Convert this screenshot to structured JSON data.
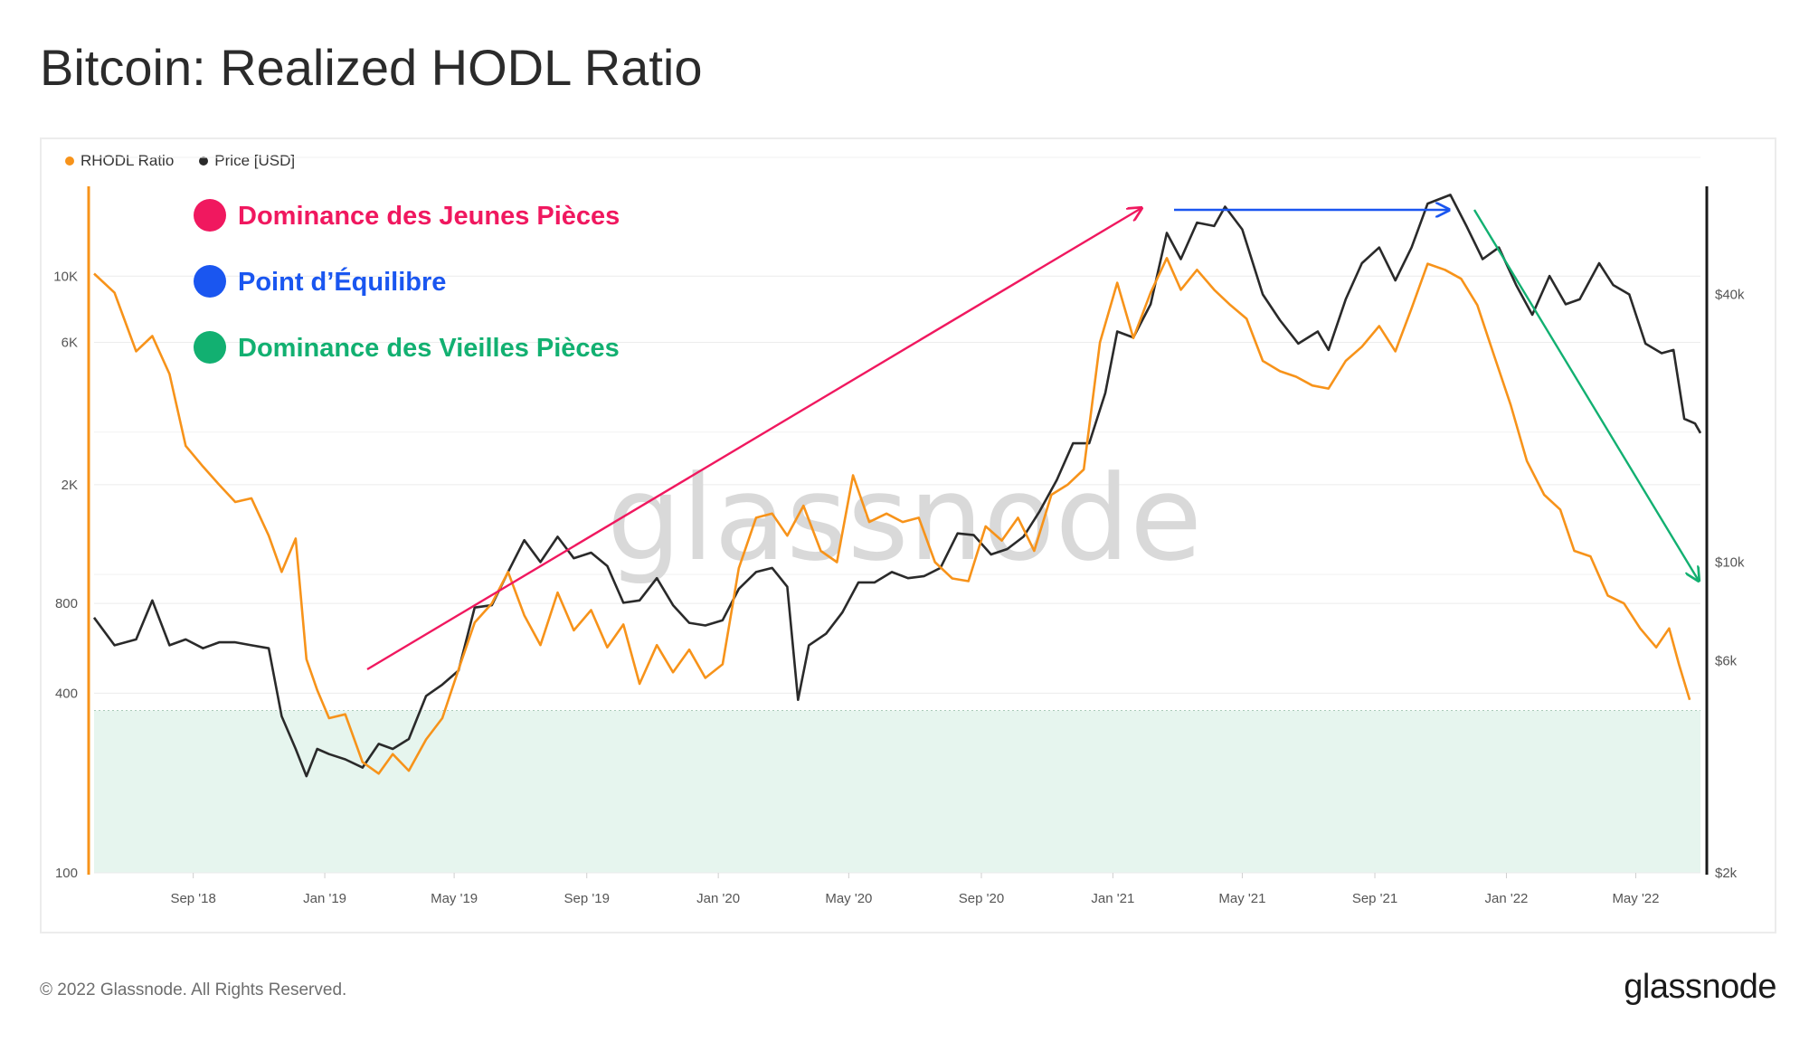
{
  "title": "Bitcoin: Realized HODL Ratio",
  "footer": {
    "copyright": "© 2022 Glassnode. All Rights Reserved.",
    "logo": "glassnode"
  },
  "watermark": "glassnode",
  "colors": {
    "rhodl": "#f7931a",
    "price": "#2a2a2a",
    "young": "#f0185f",
    "equilibrium": "#1a56f0",
    "old": "#12b071",
    "zone": "#e6f5ee"
  },
  "annotations": [
    {
      "label": "Dominance des Jeunes Pièces",
      "color": "#f0185f"
    },
    {
      "label": "Point d’Équilibre",
      "color": "#1a56f0"
    },
    {
      "label": "Dominance des Vieilles Pièces",
      "color": "#12b071"
    }
  ],
  "chart_data": {
    "type": "line",
    "legend": {
      "position": "top-left",
      "entries": [
        "RHODL Ratio",
        "Price [USD]"
      ]
    },
    "x_ticks": [
      "Sep '18",
      "Jan '19",
      "May '19",
      "Sep '19",
      "Jan '20",
      "May '20",
      "Sep '20",
      "Jan '21",
      "May '21",
      "Sep '21",
      "Jan '22",
      "May '22"
    ],
    "x_tick_dates": [
      "2018-09-01",
      "2019-01-01",
      "2019-05-01",
      "2019-09-01",
      "2020-01-01",
      "2020-05-01",
      "2020-09-01",
      "2021-01-01",
      "2021-05-01",
      "2021-09-01",
      "2022-01-01",
      "2022-05-01"
    ],
    "x_range": [
      "2018-06-01",
      "2022-06-30"
    ],
    "y_left": {
      "label": "RHODL Ratio",
      "scale": "log",
      "range": [
        100,
        20000
      ],
      "ticks": [
        100,
        400,
        800,
        2000,
        6000,
        10000
      ],
      "tick_labels": [
        "100",
        "400",
        "800",
        "2K",
        "6K",
        "10K"
      ]
    },
    "y_right": {
      "label": "Price [USD]",
      "scale": "log",
      "range": [
        2000,
        70000
      ],
      "ticks": [
        2000,
        6000,
        10000,
        40000
      ],
      "tick_labels": [
        "$2k",
        "$6k",
        "$10k",
        "$40k"
      ]
    },
    "shaded_zone": {
      "series": "RHODL Ratio",
      "from": 100,
      "to": 350
    },
    "series": [
      {
        "name": "RHODL Ratio",
        "axis": "left",
        "points": [
          [
            "2018-06-01",
            10200
          ],
          [
            "2018-06-20",
            8800
          ],
          [
            "2018-07-10",
            5600
          ],
          [
            "2018-07-25",
            6300
          ],
          [
            "2018-08-10",
            4700
          ],
          [
            "2018-08-25",
            2700
          ],
          [
            "2018-09-10",
            2300
          ],
          [
            "2018-09-25",
            2000
          ],
          [
            "2018-10-10",
            1750
          ],
          [
            "2018-10-25",
            1800
          ],
          [
            "2018-11-10",
            1350
          ],
          [
            "2018-11-22",
            1020
          ],
          [
            "2018-12-05",
            1320
          ],
          [
            "2018-12-15",
            520
          ],
          [
            "2018-12-25",
            410
          ],
          [
            "2019-01-05",
            330
          ],
          [
            "2019-01-20",
            340
          ],
          [
            "2019-02-05",
            235
          ],
          [
            "2019-02-20",
            215
          ],
          [
            "2019-03-05",
            250
          ],
          [
            "2019-03-20",
            220
          ],
          [
            "2019-04-05",
            280
          ],
          [
            "2019-04-20",
            330
          ],
          [
            "2019-05-05",
            480
          ],
          [
            "2019-05-20",
            690
          ],
          [
            "2019-06-05",
            800
          ],
          [
            "2019-06-20",
            1020
          ],
          [
            "2019-07-05",
            730
          ],
          [
            "2019-07-20",
            580
          ],
          [
            "2019-08-05",
            870
          ],
          [
            "2019-08-20",
            650
          ],
          [
            "2019-09-05",
            760
          ],
          [
            "2019-09-20",
            570
          ],
          [
            "2019-10-05",
            680
          ],
          [
            "2019-10-20",
            430
          ],
          [
            "2019-11-05",
            580
          ],
          [
            "2019-11-20",
            470
          ],
          [
            "2019-12-05",
            560
          ],
          [
            "2019-12-20",
            450
          ],
          [
            "2020-01-05",
            500
          ],
          [
            "2020-01-20",
            1050
          ],
          [
            "2020-02-05",
            1550
          ],
          [
            "2020-02-20",
            1600
          ],
          [
            "2020-03-05",
            1350
          ],
          [
            "2020-03-20",
            1700
          ],
          [
            "2020-04-05",
            1200
          ],
          [
            "2020-04-20",
            1100
          ],
          [
            "2020-05-05",
            2150
          ],
          [
            "2020-05-20",
            1500
          ],
          [
            "2020-06-05",
            1600
          ],
          [
            "2020-06-20",
            1500
          ],
          [
            "2020-07-05",
            1550
          ],
          [
            "2020-07-20",
            1100
          ],
          [
            "2020-08-05",
            970
          ],
          [
            "2020-08-20",
            950
          ],
          [
            "2020-09-05",
            1450
          ],
          [
            "2020-09-20",
            1300
          ],
          [
            "2020-10-05",
            1550
          ],
          [
            "2020-10-20",
            1200
          ],
          [
            "2020-11-05",
            1850
          ],
          [
            "2020-11-20",
            2000
          ],
          [
            "2020-12-05",
            2250
          ],
          [
            "2020-12-20",
            6000
          ],
          [
            "2021-01-05",
            9500
          ],
          [
            "2021-01-20",
            6200
          ],
          [
            "2021-02-05",
            8800
          ],
          [
            "2021-02-20",
            11500
          ],
          [
            "2021-03-05",
            9000
          ],
          [
            "2021-03-20",
            10500
          ],
          [
            "2021-04-05",
            9000
          ],
          [
            "2021-04-20",
            8000
          ],
          [
            "2021-05-05",
            7200
          ],
          [
            "2021-05-20",
            5200
          ],
          [
            "2021-06-05",
            4800
          ],
          [
            "2021-06-20",
            4600
          ],
          [
            "2021-07-05",
            4300
          ],
          [
            "2021-07-20",
            4200
          ],
          [
            "2021-08-05",
            5200
          ],
          [
            "2021-08-20",
            5800
          ],
          [
            "2021-09-05",
            6800
          ],
          [
            "2021-09-20",
            5600
          ],
          [
            "2021-10-05",
            7800
          ],
          [
            "2021-10-20",
            11000
          ],
          [
            "2021-11-05",
            10500
          ],
          [
            "2021-11-20",
            9800
          ],
          [
            "2021-12-05",
            8000
          ],
          [
            "2021-12-20",
            5500
          ],
          [
            "2022-01-05",
            3700
          ],
          [
            "2022-01-20",
            2400
          ],
          [
            "2022-02-05",
            1850
          ],
          [
            "2022-02-20",
            1650
          ],
          [
            "2022-03-05",
            1200
          ],
          [
            "2022-03-20",
            1150
          ],
          [
            "2022-04-05",
            850
          ],
          [
            "2022-04-20",
            800
          ],
          [
            "2022-05-05",
            660
          ],
          [
            "2022-05-20",
            570
          ],
          [
            "2022-06-01",
            660
          ],
          [
            "2022-06-10",
            500
          ],
          [
            "2022-06-20",
            380
          ]
        ]
      },
      {
        "name": "Price [USD]",
        "axis": "right",
        "points": [
          [
            "2018-06-01",
            7500
          ],
          [
            "2018-06-20",
            6500
          ],
          [
            "2018-07-10",
            6700
          ],
          [
            "2018-07-25",
            8200
          ],
          [
            "2018-08-10",
            6500
          ],
          [
            "2018-08-25",
            6700
          ],
          [
            "2018-09-10",
            6400
          ],
          [
            "2018-09-25",
            6600
          ],
          [
            "2018-10-10",
            6600
          ],
          [
            "2018-10-25",
            6500
          ],
          [
            "2018-11-10",
            6400
          ],
          [
            "2018-11-22",
            4500
          ],
          [
            "2018-12-05",
            3800
          ],
          [
            "2018-12-15",
            3300
          ],
          [
            "2018-12-25",
            3800
          ],
          [
            "2019-01-05",
            3700
          ],
          [
            "2019-01-20",
            3600
          ],
          [
            "2019-02-05",
            3450
          ],
          [
            "2019-02-20",
            3900
          ],
          [
            "2019-03-05",
            3800
          ],
          [
            "2019-03-20",
            4000
          ],
          [
            "2019-04-05",
            5000
          ],
          [
            "2019-04-20",
            5300
          ],
          [
            "2019-05-05",
            5700
          ],
          [
            "2019-05-20",
            7900
          ],
          [
            "2019-06-05",
            8000
          ],
          [
            "2019-06-20",
            9500
          ],
          [
            "2019-07-05",
            11200
          ],
          [
            "2019-07-20",
            10000
          ],
          [
            "2019-08-05",
            11400
          ],
          [
            "2019-08-20",
            10200
          ],
          [
            "2019-09-05",
            10500
          ],
          [
            "2019-09-20",
            9800
          ],
          [
            "2019-10-05",
            8100
          ],
          [
            "2019-10-20",
            8200
          ],
          [
            "2019-11-05",
            9200
          ],
          [
            "2019-11-20",
            8000
          ],
          [
            "2019-12-05",
            7300
          ],
          [
            "2019-12-20",
            7200
          ],
          [
            "2020-01-05",
            7400
          ],
          [
            "2020-01-20",
            8700
          ],
          [
            "2020-02-05",
            9500
          ],
          [
            "2020-02-20",
            9700
          ],
          [
            "2020-03-05",
            8800
          ],
          [
            "2020-03-15",
            4900
          ],
          [
            "2020-03-25",
            6500
          ],
          [
            "2020-04-10",
            6900
          ],
          [
            "2020-04-25",
            7700
          ],
          [
            "2020-05-10",
            9000
          ],
          [
            "2020-05-25",
            9000
          ],
          [
            "2020-06-10",
            9500
          ],
          [
            "2020-06-25",
            9200
          ],
          [
            "2020-07-10",
            9300
          ],
          [
            "2020-07-25",
            9700
          ],
          [
            "2020-08-10",
            11600
          ],
          [
            "2020-08-25",
            11500
          ],
          [
            "2020-09-10",
            10400
          ],
          [
            "2020-09-25",
            10700
          ],
          [
            "2020-10-10",
            11400
          ],
          [
            "2020-10-25",
            13000
          ],
          [
            "2020-11-10",
            15300
          ],
          [
            "2020-11-25",
            18500
          ],
          [
            "2020-12-10",
            18500
          ],
          [
            "2020-12-25",
            24000
          ],
          [
            "2021-01-05",
            33000
          ],
          [
            "2021-01-20",
            32000
          ],
          [
            "2021-02-05",
            38000
          ],
          [
            "2021-02-20",
            55000
          ],
          [
            "2021-03-05",
            48000
          ],
          [
            "2021-03-20",
            58000
          ],
          [
            "2021-04-05",
            57000
          ],
          [
            "2021-04-15",
            63000
          ],
          [
            "2021-05-01",
            56000
          ],
          [
            "2021-05-20",
            40000
          ],
          [
            "2021-06-05",
            35000
          ],
          [
            "2021-06-22",
            31000
          ],
          [
            "2021-07-10",
            33000
          ],
          [
            "2021-07-20",
            30000
          ],
          [
            "2021-08-05",
            39000
          ],
          [
            "2021-08-20",
            47000
          ],
          [
            "2021-09-05",
            51000
          ],
          [
            "2021-09-20",
            43000
          ],
          [
            "2021-10-05",
            51000
          ],
          [
            "2021-10-20",
            64000
          ],
          [
            "2021-11-10",
            67000
          ],
          [
            "2021-11-25",
            57000
          ],
          [
            "2021-12-10",
            48000
          ],
          [
            "2021-12-25",
            51000
          ],
          [
            "2022-01-10",
            42000
          ],
          [
            "2022-01-25",
            36000
          ],
          [
            "2022-02-10",
            44000
          ],
          [
            "2022-02-25",
            38000
          ],
          [
            "2022-03-10",
            39000
          ],
          [
            "2022-03-28",
            47000
          ],
          [
            "2022-04-10",
            42000
          ],
          [
            "2022-04-25",
            40000
          ],
          [
            "2022-05-10",
            31000
          ],
          [
            "2022-05-25",
            29500
          ],
          [
            "2022-06-05",
            30000
          ],
          [
            "2022-06-15",
            21000
          ],
          [
            "2022-06-25",
            20500
          ],
          [
            "2022-06-30",
            19500
          ]
        ]
      }
    ]
  }
}
